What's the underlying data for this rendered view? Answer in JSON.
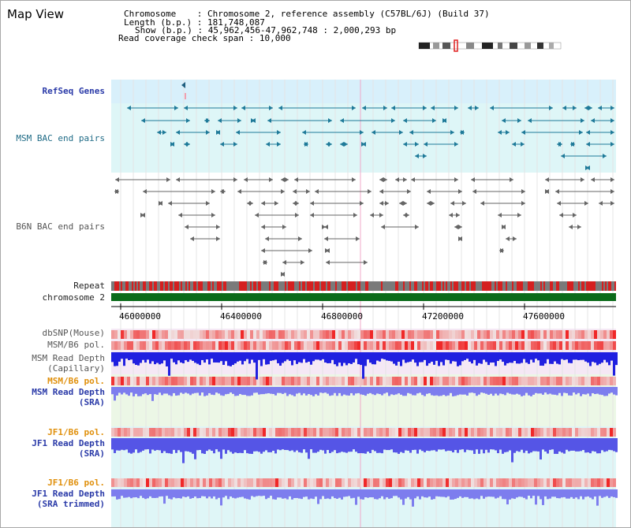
{
  "view_title": "Map View",
  "info": {
    "chromosome_label": "Chromosome",
    "chromosome_value": "Chromosome 2, reference assembly (C57BL/6J) (Build 37)",
    "length_label": "Length (b.p.)",
    "length_value": "181,748,087",
    "show_label": "Show (b.p.)",
    "show_value": "45,962,456-47,962,748 : 2,000,293 bp",
    "coverage_label": "Read coverage check span",
    "coverage_value": "10,000"
  },
  "tracks": {
    "refseq": "RefSeq Genes",
    "msm_bac": "MSM BAC end pairs",
    "b6n_bac": "B6N BAC end pairs",
    "repeat": "Repeat",
    "chromosome": "chromosome 2",
    "dbsnp": "dbSNP(Mouse)",
    "msm_b6_pol_1": "MSM/B6 pol.",
    "msm_depth_cap_1": "MSM Read Depth",
    "msm_depth_cap_2": "(Capillary)",
    "msm_b6_pol_2": "MSM/B6 pol.",
    "msm_depth_sra_1": "MSM Read Depth",
    "msm_depth_sra_2": "(SRA)",
    "jf1_b6_pol_1": "JF1/B6 pol.",
    "jf1_depth_sra_1": "JF1 Read Depth",
    "jf1_depth_sra_2": "(SRA)",
    "jf1_b6_pol_2": "JF1/B6 pol.",
    "jf1_depth_trim_1": "JF1 Read Depth",
    "jf1_depth_trim_2": "(SRA trimmed)"
  },
  "axis": {
    "ticks": [
      "46000000",
      "46400000",
      "46800000",
      "47200000",
      "47600000"
    ]
  },
  "colors": {
    "msm_bac": "#1f7a99",
    "b6n_bac": "#666666",
    "repeat_red": "#d42020",
    "repeat_grey": "#7a7a7a",
    "chromosome_bar": "#0b6b1a",
    "pol_red": "#e83030",
    "depth_blue": "#2020e0",
    "depth_light_blue": "#7d7dee",
    "refseq_bg": "#d8f0fb",
    "msm_bg": "#def6f7",
    "cap_bg": "#f5e8f5",
    "sra_bg": "#ecf7e6",
    "jf1_bg": "#dff6f7"
  }
}
